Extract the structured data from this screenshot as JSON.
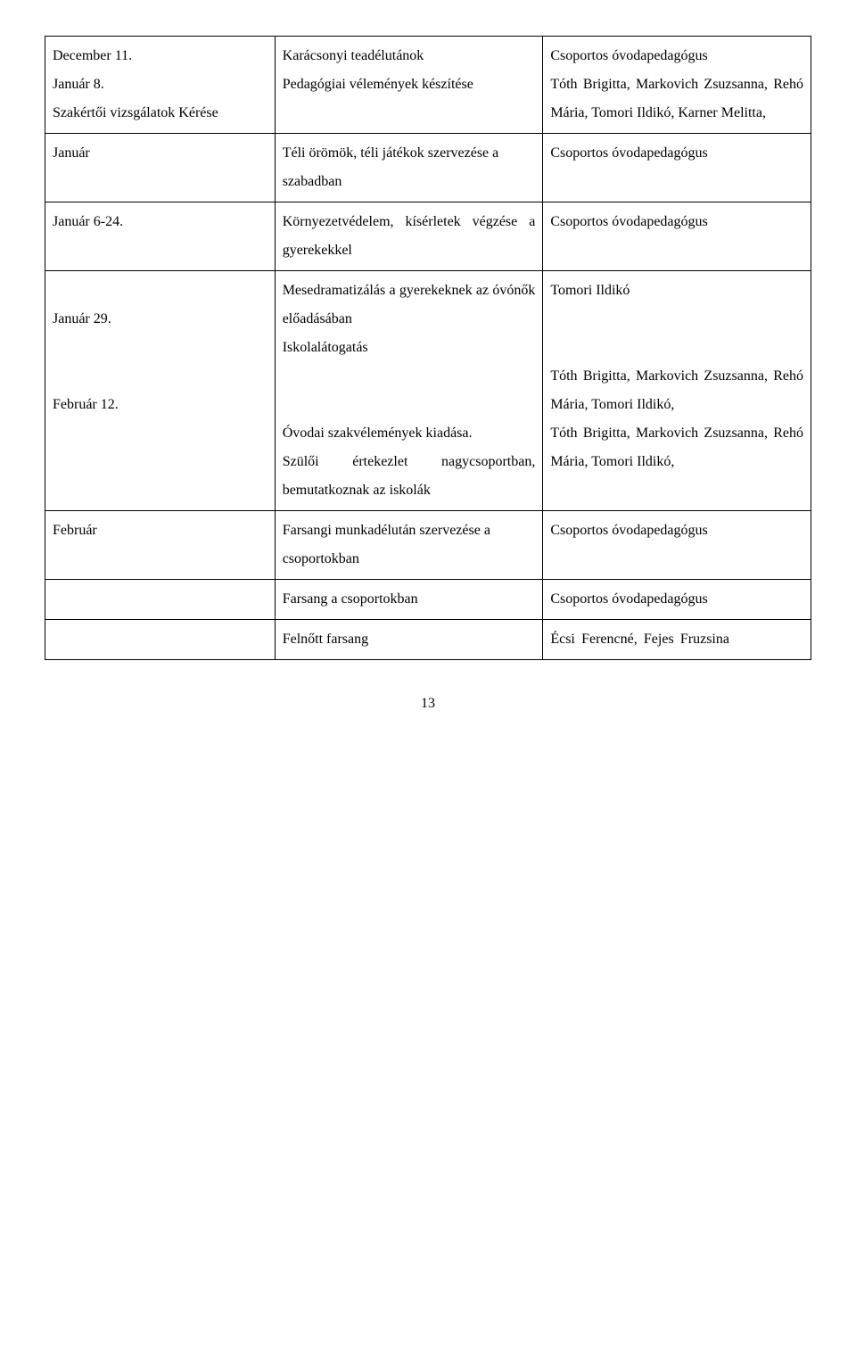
{
  "rows": [
    {
      "c1": "December 11.\nJanuár 8.\nSzakértői vizsgálatok Kérése",
      "c2": "Karácsonyi teadélutánok\nPedagógiai vélemények készítése",
      "c3": "Csoportos óvodapedagógus\nTóth Brigitta, Markovich Zsuzsanna, Rehó Mária, Tomori Ildikó, Karner Melitta,"
    },
    {
      "c1": "Január",
      "c2": "Téli örömök, téli játékok szervezése a szabadban",
      "c3": "Csoportos óvodapedagógus"
    },
    {
      "c1": "Január 6-24.",
      "c2": "Környezetvédelem, kísérletek végzése a gyerekekkel",
      "c3": "Csoportos óvodapedagógus"
    },
    {
      "c1": "\nJanuár 29.\n\n\nFebruár 12.",
      "c2": "Mesedramatizálás a gyerekeknek az óvónők előadásában\nIskolalátogatás\n\n\nÓvodai szakvélemények kiadása.\nSzülői értekezlet nagycsoportban, bemutatkoznak az iskolák",
      "c3": "Tomori Ildikó\n\n\nTóth Brigitta, Markovich Zsuzsanna, Rehó Mária, Tomori Ildikó,\nTóth Brigitta, Markovich Zsuzsanna, Rehó Mária, Tomori Ildikó,"
    },
    {
      "c1": "Február",
      "c2": "Farsangi munkadélután szervezése a csoportokban",
      "c3": "Csoportos óvodapedagógus"
    },
    {
      "c1": "",
      "c2": "Farsang a csoportokban",
      "c3": "Csoportos óvodapedagógus"
    },
    {
      "c1": "",
      "c2": "Felnőtt farsang",
      "c3": "Écsi Ferencné, Fejes Fruzsina"
    }
  ],
  "page_number": "13"
}
